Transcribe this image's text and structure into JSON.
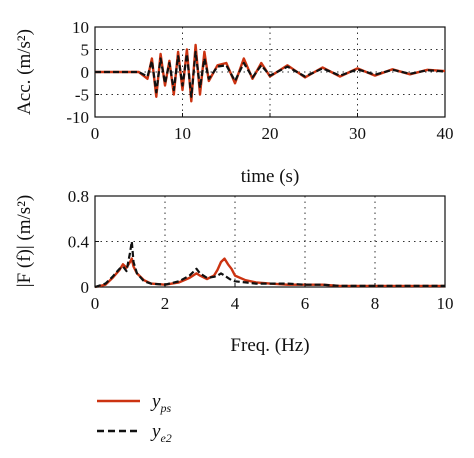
{
  "chart_data": [
    {
      "type": "line",
      "title": "",
      "xlabel": "time (s)",
      "ylabel": "Acc. (m/s²)",
      "xlim": [
        0,
        40
      ],
      "ylim": [
        -10,
        10
      ],
      "xticks": [
        "0",
        "10",
        "20",
        "30",
        "40"
      ],
      "yticks": [
        "10",
        "5",
        "0",
        "-5",
        "-10"
      ],
      "grid": "dotted",
      "series": [
        {
          "name": "y_ps",
          "color": "#cc3311",
          "style": "solid",
          "x": [
            0,
            5,
            6.0,
            6.5,
            7.0,
            7.5,
            8.0,
            8.5,
            9.0,
            9.5,
            10.0,
            10.5,
            11.0,
            11.5,
            12.0,
            12.5,
            13.0,
            14.0,
            15.0,
            16.0,
            17.0,
            18.0,
            19.0,
            20.0,
            22.0,
            24.0,
            26.0,
            28.0,
            30.0,
            32.0,
            34.0,
            36.0,
            38.0,
            40.0
          ],
          "values": [
            0,
            0,
            -1.5,
            3.0,
            -5.5,
            4.0,
            -3.0,
            2.5,
            -5.0,
            4.5,
            -4.0,
            5.0,
            -6.5,
            6.0,
            -5.0,
            4.5,
            -2.0,
            1.5,
            2.0,
            -2.5,
            3.0,
            -1.5,
            2.0,
            -1.0,
            1.5,
            -1.2,
            1.0,
            -1.0,
            0.8,
            -0.8,
            0.6,
            -0.5,
            0.5,
            0.2
          ]
        },
        {
          "name": "y_e2",
          "color": "#111111",
          "style": "dashed",
          "x": [
            0,
            5,
            6.0,
            6.5,
            7.0,
            7.5,
            8.0,
            8.5,
            9.0,
            9.5,
            10.0,
            10.5,
            11.0,
            11.5,
            12.0,
            12.5,
            13.0,
            14.0,
            15.0,
            16.0,
            17.0,
            18.0,
            19.0,
            20.0,
            22.0,
            24.0,
            26.0,
            28.0,
            30.0,
            32.0,
            34.0,
            36.0,
            38.0,
            40.0
          ],
          "values": [
            0,
            0,
            -1.0,
            2.5,
            -4.5,
            3.0,
            -2.5,
            2.0,
            -4.0,
            3.5,
            -3.0,
            4.0,
            -5.5,
            4.5,
            -3.5,
            3.0,
            -1.5,
            1.2,
            1.5,
            -2.0,
            2.0,
            -1.2,
            1.5,
            -0.8,
            1.2,
            -1.0,
            0.8,
            -0.8,
            0.6,
            -0.6,
            0.5,
            -0.4,
            0.4,
            0.1
          ]
        }
      ]
    },
    {
      "type": "line",
      "title": "",
      "xlabel": "Freq. (Hz)",
      "ylabel": "|F (f)| (m/s²)",
      "xlim": [
        0,
        10
      ],
      "ylim": [
        0,
        0.8
      ],
      "xticks": [
        "0",
        "2",
        "4",
        "6",
        "8",
        "10"
      ],
      "yticks": [
        "0.8",
        "0.4",
        "0"
      ],
      "grid": "dotted",
      "series": [
        {
          "name": "y_ps",
          "color": "#cc3311",
          "style": "solid",
          "x": [
            0,
            0.3,
            0.5,
            0.7,
            0.8,
            0.9,
            1.0,
            1.05,
            1.1,
            1.2,
            1.4,
            1.6,
            2.0,
            2.4,
            2.7,
            2.9,
            3.0,
            3.2,
            3.4,
            3.5,
            3.6,
            3.7,
            3.8,
            3.9,
            4.0,
            4.3,
            4.6,
            5.0,
            5.5,
            6.0,
            6.5,
            7.0,
            7.5,
            8.0,
            8.5,
            9.0,
            9.5,
            10.0
          ],
          "values": [
            0.0,
            0.02,
            0.08,
            0.15,
            0.2,
            0.17,
            0.22,
            0.25,
            0.18,
            0.12,
            0.06,
            0.03,
            0.02,
            0.04,
            0.08,
            0.12,
            0.1,
            0.07,
            0.1,
            0.15,
            0.22,
            0.25,
            0.2,
            0.16,
            0.1,
            0.06,
            0.04,
            0.03,
            0.02,
            0.02,
            0.02,
            0.01,
            0.01,
            0.01,
            0.01,
            0.01,
            0.01,
            0.01
          ]
        },
        {
          "name": "y_e2",
          "color": "#111111",
          "style": "dashed",
          "x": [
            0,
            0.3,
            0.5,
            0.7,
            0.8,
            0.9,
            1.0,
            1.05,
            1.1,
            1.2,
            1.4,
            1.6,
            2.0,
            2.4,
            2.7,
            2.9,
            3.0,
            3.2,
            3.4,
            3.5,
            3.6,
            3.7,
            3.8,
            3.9,
            4.0,
            4.3,
            4.6,
            5.0,
            5.5,
            6.0,
            6.5,
            7.0,
            7.5,
            8.0,
            8.5,
            9.0,
            9.5,
            10.0
          ],
          "values": [
            0.0,
            0.03,
            0.09,
            0.16,
            0.18,
            0.14,
            0.3,
            0.4,
            0.22,
            0.12,
            0.05,
            0.03,
            0.02,
            0.05,
            0.1,
            0.16,
            0.12,
            0.08,
            0.09,
            0.1,
            0.12,
            0.1,
            0.08,
            0.06,
            0.05,
            0.04,
            0.03,
            0.03,
            0.03,
            0.02,
            0.02,
            0.01,
            0.01,
            0.01,
            0.01,
            0.01,
            0.01,
            0.01
          ]
        }
      ]
    }
  ],
  "legend": {
    "placement": "bottom-left",
    "items": [
      {
        "base": "y",
        "sub": "ps",
        "color": "#cc3311",
        "style": "solid"
      },
      {
        "base": "y",
        "sub": "e2",
        "color": "#111111",
        "style": "dashed"
      }
    ]
  }
}
